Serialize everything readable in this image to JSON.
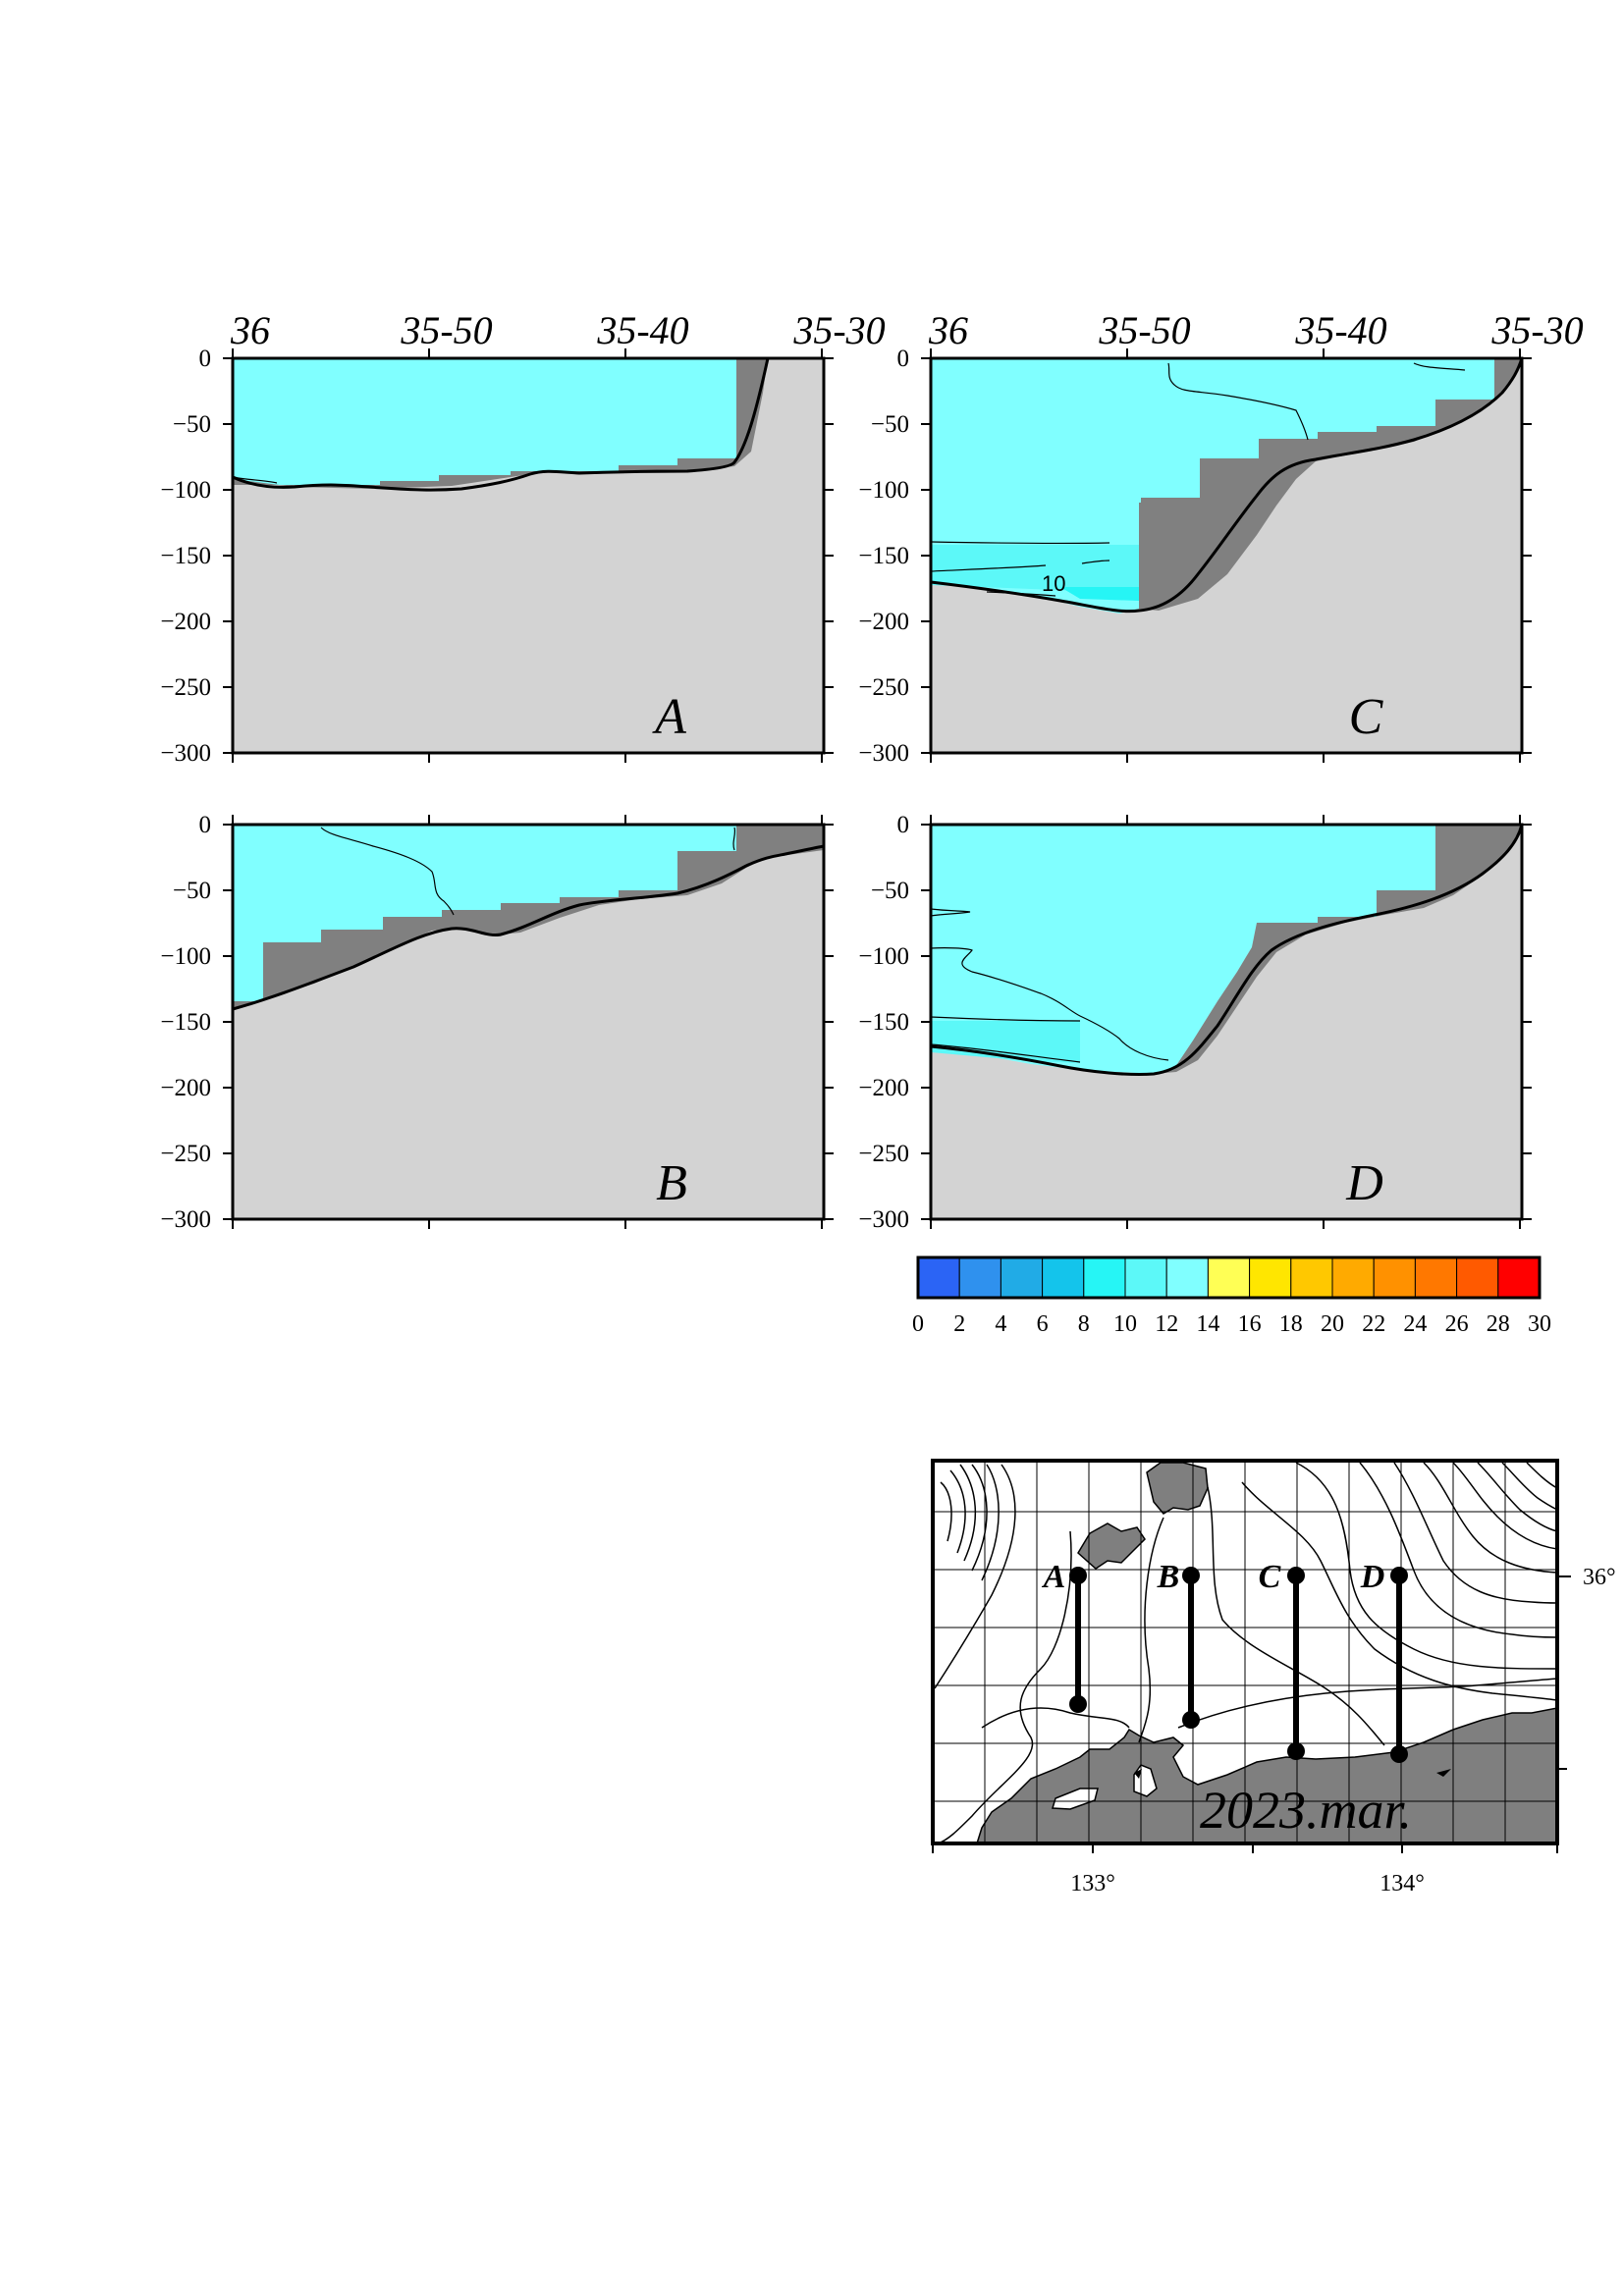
{
  "chart_data": [
    {
      "type": "section",
      "panel": "A",
      "x_ticks": [
        "36",
        "35-50",
        "35-40",
        "35-30"
      ],
      "y_ticks": [
        "0",
        "−50",
        "−100",
        "−150",
        "−200",
        "−250",
        "−300"
      ],
      "ylim": [
        -300,
        0
      ],
      "contours": [],
      "fill_color": "#80FFFF"
    },
    {
      "type": "section",
      "panel": "B",
      "x_ticks": [],
      "y_ticks": [
        "0",
        "−50",
        "−100",
        "−150",
        "−200",
        "−250",
        "−300"
      ],
      "ylim": [
        -300,
        0
      ],
      "contours": [],
      "fill_color": "#80FFFF"
    },
    {
      "type": "section",
      "panel": "C",
      "x_ticks": [
        "36",
        "35-50",
        "35-40",
        "35-30"
      ],
      "y_ticks": [
        "0",
        "−50",
        "−100",
        "−150",
        "−200",
        "−250",
        "−300"
      ],
      "ylim": [
        -300,
        0
      ],
      "contours": [
        "10"
      ],
      "fill_color": "#80FFFF"
    },
    {
      "type": "section",
      "panel": "D",
      "x_ticks": [],
      "y_ticks": [
        "0",
        "−50",
        "−100",
        "−150",
        "−200",
        "−250",
        "−300"
      ],
      "ylim": [
        -300,
        0
      ],
      "contours": [],
      "fill_color": "#80FFFF"
    }
  ],
  "colorbar": {
    "labels": [
      "0",
      "2",
      "4",
      "6",
      "8",
      "10",
      "12",
      "14",
      "16",
      "18",
      "20",
      "22",
      "24",
      "26",
      "28",
      "30"
    ],
    "colors": [
      "#2B64F5",
      "#2F91EE",
      "#21ABE6",
      "#14C4EB",
      "#26F5F5",
      "#5CF8F8",
      "#80FFFF",
      "#FFFF55",
      "#FFE600",
      "#FFC800",
      "#FFAA00",
      "#FF9100",
      "#FF7800",
      "#FF5A00",
      "#FF0000"
    ]
  },
  "map": {
    "stamp": "2023.mar.",
    "lon_ticks": [
      "133°",
      "134°"
    ],
    "lat_ticks": [
      "36°"
    ],
    "lines": [
      "A",
      "B",
      "C",
      "D"
    ],
    "land_color": "#7F7F7F"
  }
}
